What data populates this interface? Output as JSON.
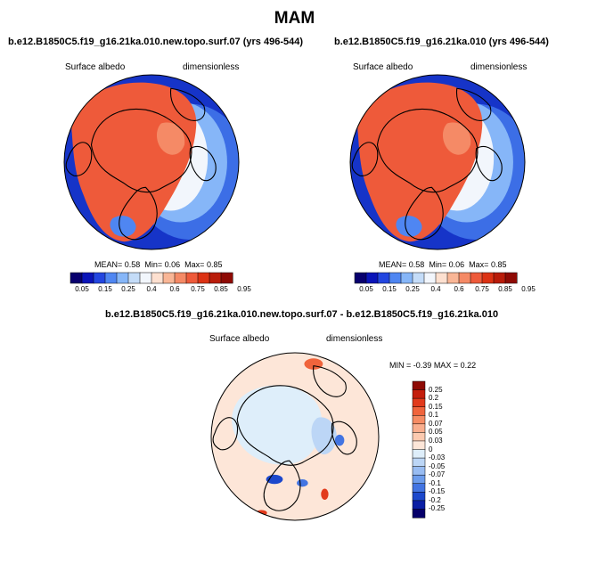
{
  "title": "MAM",
  "panels": [
    {
      "title": "b.e12.B1850C5.f19_g16.21ka.010.new.topo.surf.07 (yrs 496-544)",
      "left_label": "Surface albedo",
      "right_label": "dimensionless",
      "stats": {
        "mean_label": "MEAN=",
        "mean": "0.58",
        "min_label": "Min=",
        "min": "0.06",
        "max_label": "Max=",
        "max": "0.85"
      }
    },
    {
      "title": "b.e12.B1850C5.f19_g16.21ka.010 (yrs 496-544)",
      "left_label": "Surface albedo",
      "right_label": "dimensionless",
      "stats": {
        "mean_label": "MEAN=",
        "mean": "0.58",
        "min_label": "Min=",
        "min": "0.06",
        "max_label": "Max=",
        "max": "0.85"
      }
    }
  ],
  "abs_colorbar": {
    "ticks": [
      "0.05",
      "0.15",
      "0.25",
      "0.4",
      "0.6",
      "0.75",
      "0.85",
      "0.95"
    ],
    "colors": [
      "#08006e",
      "#0a14b8",
      "#2346e0",
      "#4f86f2",
      "#86b6f8",
      "#c4dcf8",
      "#f2f6fc",
      "#fde0d0",
      "#f9b696",
      "#f58a66",
      "#ee5a3a",
      "#dc3214",
      "#b91c0a",
      "#8e0a04"
    ]
  },
  "diff_panel": {
    "title": "b.e12.B1850C5.f19_g16.21ka.010.new.topo.surf.07 - b.e12.B1850C5.f19_g16.21ka.010",
    "left_label": "Surface albedo",
    "right_label": "dimensionless",
    "stats": {
      "min_label": "MIN =",
      "min": "-0.39",
      "max_label": "MAX =",
      "max": "0.22"
    }
  },
  "diff_colorbar": {
    "ticks": [
      "0.25",
      "0.2",
      "0.15",
      "0.1",
      "0.07",
      "0.05",
      "0.03",
      "0",
      "-0.03",
      "-0.05",
      "-0.07",
      "-0.1",
      "-0.15",
      "-0.2",
      "-0.25"
    ],
    "colors": [
      "#8e0a04",
      "#c41e0c",
      "#e23a1c",
      "#f0643c",
      "#f68c64",
      "#f9ae8e",
      "#fccab0",
      "#fde6d8",
      "#deeefa",
      "#bcd6f6",
      "#98bcf2",
      "#6c9cec",
      "#4274e2",
      "#1c48cc",
      "#0a1ea4",
      "#06006a"
    ]
  }
}
